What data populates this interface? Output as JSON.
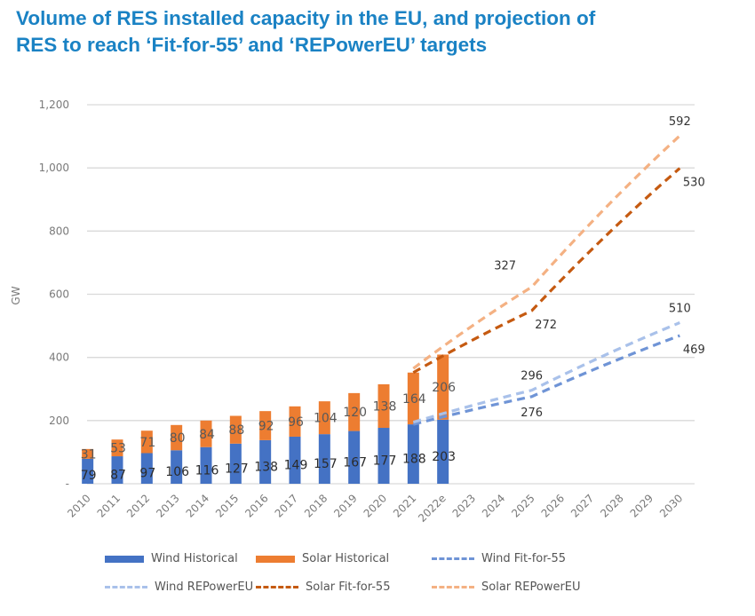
{
  "title": "Volume of RES installed capacity in the EU, and projection of RES to reach ‘Fit-for-55’ and ‘REPowerEU’ targets",
  "title_lines": [
    "Volume of RES installed capacity in the EU, and projection of",
    "RES to reach ‘Fit-for-55’ and ‘REPowerEU’ targets"
  ],
  "colors": {
    "title": "#1a82c4",
    "wind_historical": "#4472c4",
    "solar_historical": "#ed7d31",
    "wind_fit_for_55": "#6f94d6",
    "wind_repowereu": "#a9c1ea",
    "solar_fit_for_55": "#c55a11",
    "solar_repowereu": "#f4b183",
    "grid": "#d9d9d9"
  },
  "chart_data": {
    "type": "bar",
    "subtype": "stacked bar + dashed projection lines",
    "title": "Volume of RES installed capacity in the EU, and projection of RES to reach ‘Fit-for-55’ and ‘REPowerEU’ targets",
    "xlabel": "",
    "ylabel": "GW",
    "ylim": [
      0,
      1200
    ],
    "yticks": [
      0,
      200,
      400,
      600,
      800,
      1000,
      1200
    ],
    "ytick_labels": [
      "-",
      "200",
      "400",
      "600",
      "800",
      "1,000",
      "1,200"
    ],
    "grid": true,
    "legend_position": "bottom",
    "categories": [
      "2010",
      "2011",
      "2012",
      "2013",
      "2014",
      "2015",
      "2016",
      "2017",
      "2018",
      "2019",
      "2020",
      "2021",
      "2022e",
      "2023",
      "2024",
      "2025",
      "2026",
      "2027",
      "2028",
      "2029",
      "2030"
    ],
    "bars": [
      {
        "name": "Wind Historical",
        "color": "#4472c4",
        "values": [
          79,
          87,
          97,
          106,
          116,
          127,
          138,
          149,
          157,
          167,
          177,
          188,
          203,
          null,
          null,
          null,
          null,
          null,
          null,
          null,
          null
        ]
      },
      {
        "name": "Solar Historical",
        "color": "#ed7d31",
        "values": [
          31,
          53,
          71,
          80,
          84,
          88,
          92,
          96,
          104,
          120,
          138,
          164,
          206,
          null,
          null,
          null,
          null,
          null,
          null,
          null,
          null
        ]
      }
    ],
    "lines": [
      {
        "name": "Wind Fit-for-55",
        "color": "#6f94d6",
        "stacked_on": null,
        "points": [
          {
            "x": "2021",
            "y": 188
          },
          {
            "x": "2025",
            "y": 276
          },
          {
            "x": "2030",
            "y": 469
          }
        ],
        "labels": [
          {
            "x": "2025",
            "text": "276",
            "pos": "below"
          },
          {
            "x": "2030",
            "text": "469",
            "pos": "below-right"
          }
        ]
      },
      {
        "name": "Wind REPowerEU",
        "color": "#a9c1ea",
        "stacked_on": null,
        "points": [
          {
            "x": "2021",
            "y": 195
          },
          {
            "x": "2025",
            "y": 296
          },
          {
            "x": "2030",
            "y": 510
          }
        ],
        "labels": [
          {
            "x": "2025",
            "text": "296",
            "pos": "above"
          },
          {
            "x": "2030",
            "text": "510",
            "pos": "above"
          }
        ]
      },
      {
        "name": "Solar Fit-for-55",
        "color": "#c55a11",
        "stacked_on": "Wind Fit-for-55",
        "points": [
          {
            "x": "2021",
            "y": 352
          },
          {
            "x": "2025",
            "y": 548
          },
          {
            "x": "2030",
            "y": 999
          }
        ],
        "labels": [
          {
            "x": "2025",
            "text": "272",
            "pos": "below-right"
          },
          {
            "x": "2030",
            "text": "530",
            "pos": "below-right"
          }
        ]
      },
      {
        "name": "Solar REPowerEU",
        "color": "#f4b183",
        "stacked_on": "Wind REPowerEU",
        "points": [
          {
            "x": "2021",
            "y": 365
          },
          {
            "x": "2025",
            "y": 623
          },
          {
            "x": "2030",
            "y": 1102
          }
        ],
        "labels": [
          {
            "x": "2025",
            "text": "327",
            "pos": "above-left"
          },
          {
            "x": "2030",
            "text": "592",
            "pos": "above"
          }
        ]
      }
    ],
    "legend": [
      "Wind Historical",
      "Solar Historical",
      "Wind Fit-for-55",
      "Wind REPowerEU",
      "Solar Fit-for-55",
      "Solar REPowerEU"
    ]
  },
  "legend": [
    {
      "label": "Wind Historical",
      "kind": "bar",
      "color": "#4472c4"
    },
    {
      "label": "Solar Historical",
      "kind": "bar",
      "color": "#ed7d31"
    },
    {
      "label": "Wind Fit-for-55",
      "kind": "dash",
      "color": "#6f94d6"
    },
    {
      "label": "Wind REPowerEU",
      "kind": "dash",
      "color": "#a9c1ea"
    },
    {
      "label": "Solar Fit-for-55",
      "kind": "dash",
      "color": "#c55a11"
    },
    {
      "label": "Solar REPowerEU",
      "kind": "dash",
      "color": "#f4b183"
    }
  ]
}
